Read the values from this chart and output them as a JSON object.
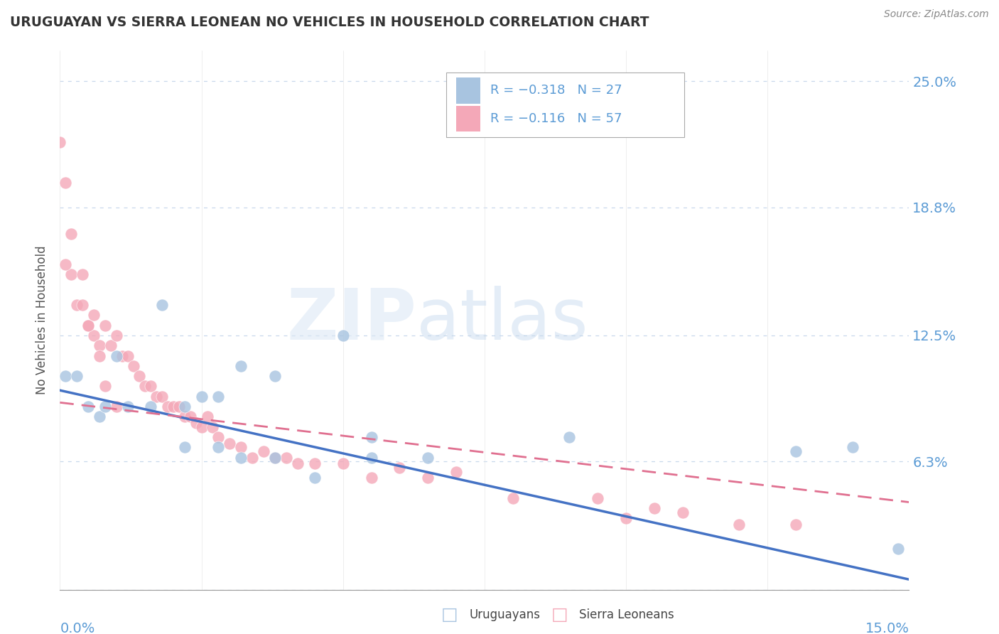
{
  "title": "URUGUAYAN VS SIERRA LEONEAN NO VEHICLES IN HOUSEHOLD CORRELATION CHART",
  "source": "Source: ZipAtlas.com",
  "ylabel": "No Vehicles in Household",
  "ytick_vals": [
    0.0,
    0.063,
    0.125,
    0.188,
    0.25
  ],
  "ytick_labels": [
    "",
    "6.3%",
    "12.5%",
    "18.8%",
    "25.0%"
  ],
  "xlim": [
    0.0,
    0.15
  ],
  "ylim": [
    0.0,
    0.265
  ],
  "legend_line1": "R = −0.318   N = 27",
  "legend_line2": "R = −0.116   N = 57",
  "color_uruguayan": "#a8c4e0",
  "color_sierralone": "#f4a8b8",
  "color_line_uruguayan": "#4472c4",
  "color_line_sierralone": "#e07090",
  "color_ytick": "#5b9bd5",
  "color_xtick": "#5b9bd5",
  "color_grid": "#c8d8ec",
  "uru_x": [
    0.001,
    0.003,
    0.005,
    0.007,
    0.008,
    0.01,
    0.012,
    0.016,
    0.018,
    0.022,
    0.025,
    0.028,
    0.032,
    0.038,
    0.05,
    0.055,
    0.065,
    0.09,
    0.13,
    0.14,
    0.148,
    0.022,
    0.028,
    0.032,
    0.038,
    0.045,
    0.055
  ],
  "uru_y": [
    0.105,
    0.105,
    0.09,
    0.085,
    0.09,
    0.115,
    0.09,
    0.09,
    0.14,
    0.09,
    0.095,
    0.095,
    0.11,
    0.105,
    0.125,
    0.075,
    0.065,
    0.075,
    0.068,
    0.07,
    0.02,
    0.07,
    0.07,
    0.065,
    0.065,
    0.055,
    0.065
  ],
  "sl_x": [
    0.001,
    0.002,
    0.003,
    0.004,
    0.005,
    0.006,
    0.007,
    0.008,
    0.009,
    0.01,
    0.011,
    0.012,
    0.013,
    0.014,
    0.015,
    0.016,
    0.017,
    0.018,
    0.019,
    0.02,
    0.021,
    0.022,
    0.023,
    0.024,
    0.025,
    0.026,
    0.027,
    0.028,
    0.03,
    0.032,
    0.034,
    0.036,
    0.038,
    0.04,
    0.042,
    0.045,
    0.05,
    0.055,
    0.06,
    0.065,
    0.07,
    0.08,
    0.095,
    0.1,
    0.105,
    0.11,
    0.12,
    0.13,
    0.0,
    0.001,
    0.002,
    0.004,
    0.005,
    0.006,
    0.007,
    0.008,
    0.01
  ],
  "sl_y": [
    0.2,
    0.155,
    0.14,
    0.14,
    0.13,
    0.125,
    0.12,
    0.13,
    0.12,
    0.125,
    0.115,
    0.115,
    0.11,
    0.105,
    0.1,
    0.1,
    0.095,
    0.095,
    0.09,
    0.09,
    0.09,
    0.085,
    0.085,
    0.082,
    0.08,
    0.085,
    0.08,
    0.075,
    0.072,
    0.07,
    0.065,
    0.068,
    0.065,
    0.065,
    0.062,
    0.062,
    0.062,
    0.055,
    0.06,
    0.055,
    0.058,
    0.045,
    0.045,
    0.035,
    0.04,
    0.038,
    0.032,
    0.032,
    0.22,
    0.16,
    0.175,
    0.155,
    0.13,
    0.135,
    0.115,
    0.1,
    0.09
  ],
  "uru_trend_x": [
    0.0,
    0.15
  ],
  "uru_trend_y": [
    0.098,
    0.005
  ],
  "sl_trend_x": [
    0.0,
    0.15
  ],
  "sl_trend_y": [
    0.092,
    0.043
  ]
}
